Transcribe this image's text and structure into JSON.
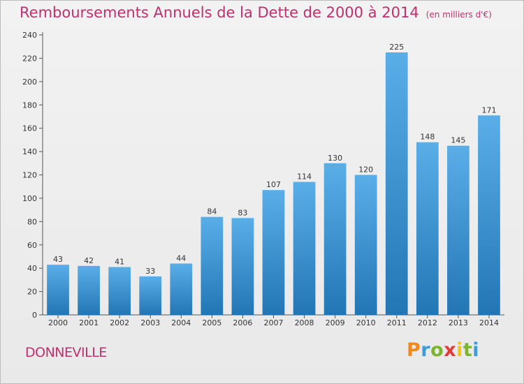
{
  "title": "Remboursements Annuels de la Dette de 2000 à 2014",
  "title_unit": "(en milliers d'€)",
  "city": "DONNEVILLE",
  "logo": {
    "text": "Proxiti",
    "colors": [
      "#f08a1c",
      "#3f9ad8",
      "#7bb52d",
      "#e23b3b",
      "#f0c419",
      "#7bb52d",
      "#3f9ad8"
    ]
  },
  "colors": {
    "title": "#c0306e",
    "bar_light": "#5aaee8",
    "bar_dark": "#2276b4"
  },
  "chart_data": {
    "type": "bar",
    "categories": [
      "2000",
      "2001",
      "2002",
      "2003",
      "2004",
      "2005",
      "2006",
      "2007",
      "2008",
      "2009",
      "2010",
      "2011",
      "2012",
      "2013",
      "2014"
    ],
    "values": [
      43,
      42,
      41,
      33,
      44,
      84,
      83,
      107,
      114,
      130,
      120,
      225,
      148,
      145,
      171
    ],
    "ylim": [
      0,
      240
    ],
    "yticks": [
      0,
      20,
      40,
      60,
      80,
      100,
      120,
      140,
      160,
      180,
      200,
      220,
      240
    ],
    "grid": false,
    "legend": "none"
  }
}
